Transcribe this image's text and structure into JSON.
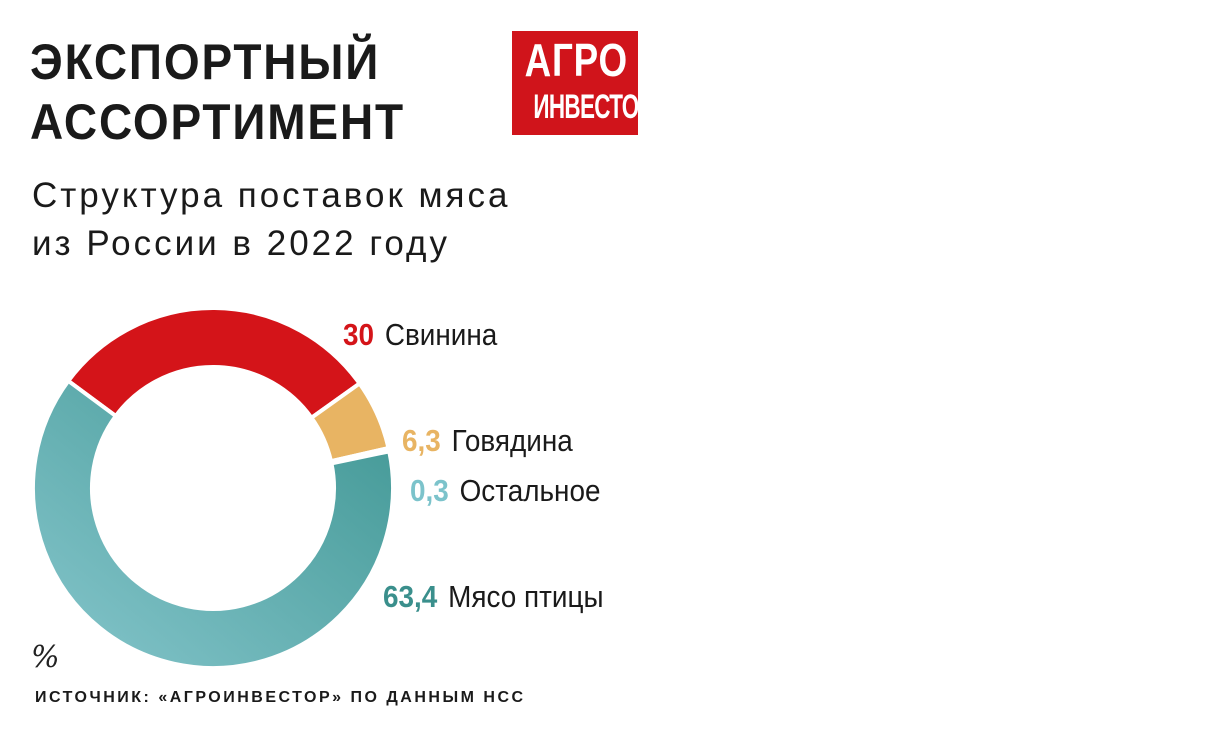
{
  "title": {
    "line1": "ЭКСПОРТНЫЙ",
    "line2": "АССОРТИМЕНТ"
  },
  "subtitle": {
    "line1": "Структура поставок мяса",
    "line2": "из России в 2022 году"
  },
  "logo": {
    "line1": "АГРО",
    "line2": "ИНВЕСТОР",
    "color": "#d0141b"
  },
  "unit": "%",
  "source": "ИСТОЧНИК: «АГРОИНВЕСТОР» ПО ДАННЫМ НСС",
  "chart_data": {
    "type": "pie",
    "donut": true,
    "categories": [
      "Свинина",
      "Говядина",
      "Остальное",
      "Мясо птицы"
    ],
    "values": [
      30,
      6.3,
      0.3,
      63.4
    ],
    "value_labels": [
      "30",
      "6,3",
      "0,3",
      "63,4"
    ],
    "colors": [
      "#d41419",
      "#e8b463",
      "#7cc3cb",
      "#4a9e9c"
    ],
    "label_colors": [
      "#d41419",
      "#e8b463",
      "#7cc3cb",
      "#3a8f8c"
    ],
    "unit": "%",
    "legend": "right"
  }
}
